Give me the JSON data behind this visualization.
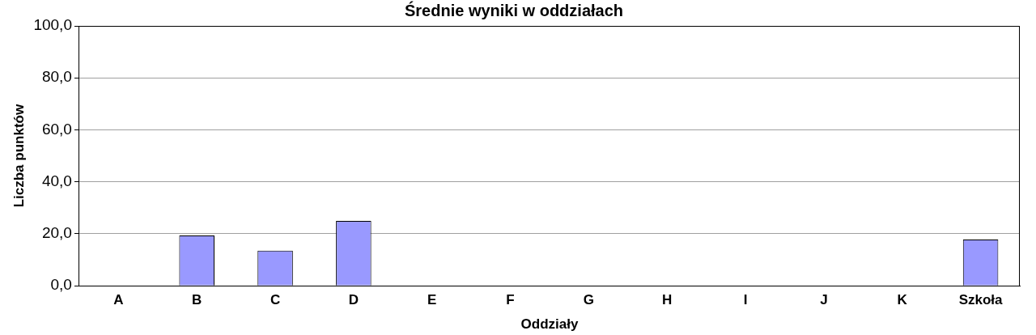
{
  "chart_data": {
    "type": "bar",
    "title": "Średnie wyniki w oddziałach",
    "xlabel": "Oddziały",
    "ylabel": "Liczba punktów",
    "categories": [
      "A",
      "B",
      "C",
      "D",
      "E",
      "F",
      "G",
      "H",
      "I",
      "J",
      "K",
      "Szkoła"
    ],
    "values": [
      null,
      19.4,
      13.5,
      25.0,
      null,
      null,
      null,
      null,
      null,
      null,
      null,
      17.8
    ],
    "color": "#9999ff",
    "ylim": [
      0,
      100
    ],
    "yticks": [
      {
        "value": 0,
        "label": "0,0"
      },
      {
        "value": 20,
        "label": "20,0"
      },
      {
        "value": 40,
        "label": "40,0"
      },
      {
        "value": 60,
        "label": "60,0"
      },
      {
        "value": 80,
        "label": "80,0"
      },
      {
        "value": 100,
        "label": "100,0"
      }
    ],
    "grid": "y",
    "legend": false
  }
}
